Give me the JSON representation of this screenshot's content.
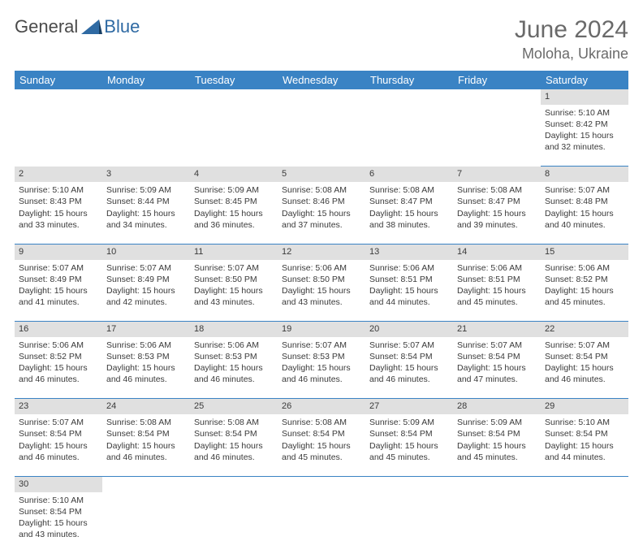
{
  "logo": {
    "text1": "General",
    "text2": "Blue"
  },
  "title": "June 2024",
  "location": "Moloha, Ukraine",
  "colors": {
    "header_bg": "#3a83c4",
    "header_text": "#ffffff",
    "date_row_bg": "#e0e0e0",
    "cell_border": "#3a83c4",
    "text": "#3a3a3a",
    "title_text": "#6a6a6a"
  },
  "day_headers": [
    "Sunday",
    "Monday",
    "Tuesday",
    "Wednesday",
    "Thursday",
    "Friday",
    "Saturday"
  ],
  "weeks": [
    {
      "dates": [
        "",
        "",
        "",
        "",
        "",
        "",
        "1"
      ],
      "cells": [
        null,
        null,
        null,
        null,
        null,
        null,
        {
          "sunrise": "Sunrise: 5:10 AM",
          "sunset": "Sunset: 8:42 PM",
          "daylight": "Daylight: 15 hours and 32 minutes."
        }
      ]
    },
    {
      "dates": [
        "2",
        "3",
        "4",
        "5",
        "6",
        "7",
        "8"
      ],
      "cells": [
        {
          "sunrise": "Sunrise: 5:10 AM",
          "sunset": "Sunset: 8:43 PM",
          "daylight": "Daylight: 15 hours and 33 minutes."
        },
        {
          "sunrise": "Sunrise: 5:09 AM",
          "sunset": "Sunset: 8:44 PM",
          "daylight": "Daylight: 15 hours and 34 minutes."
        },
        {
          "sunrise": "Sunrise: 5:09 AM",
          "sunset": "Sunset: 8:45 PM",
          "daylight": "Daylight: 15 hours and 36 minutes."
        },
        {
          "sunrise": "Sunrise: 5:08 AM",
          "sunset": "Sunset: 8:46 PM",
          "daylight": "Daylight: 15 hours and 37 minutes."
        },
        {
          "sunrise": "Sunrise: 5:08 AM",
          "sunset": "Sunset: 8:47 PM",
          "daylight": "Daylight: 15 hours and 38 minutes."
        },
        {
          "sunrise": "Sunrise: 5:08 AM",
          "sunset": "Sunset: 8:47 PM",
          "daylight": "Daylight: 15 hours and 39 minutes."
        },
        {
          "sunrise": "Sunrise: 5:07 AM",
          "sunset": "Sunset: 8:48 PM",
          "daylight": "Daylight: 15 hours and 40 minutes."
        }
      ]
    },
    {
      "dates": [
        "9",
        "10",
        "11",
        "12",
        "13",
        "14",
        "15"
      ],
      "cells": [
        {
          "sunrise": "Sunrise: 5:07 AM",
          "sunset": "Sunset: 8:49 PM",
          "daylight": "Daylight: 15 hours and 41 minutes."
        },
        {
          "sunrise": "Sunrise: 5:07 AM",
          "sunset": "Sunset: 8:49 PM",
          "daylight": "Daylight: 15 hours and 42 minutes."
        },
        {
          "sunrise": "Sunrise: 5:07 AM",
          "sunset": "Sunset: 8:50 PM",
          "daylight": "Daylight: 15 hours and 43 minutes."
        },
        {
          "sunrise": "Sunrise: 5:06 AM",
          "sunset": "Sunset: 8:50 PM",
          "daylight": "Daylight: 15 hours and 43 minutes."
        },
        {
          "sunrise": "Sunrise: 5:06 AM",
          "sunset": "Sunset: 8:51 PM",
          "daylight": "Daylight: 15 hours and 44 minutes."
        },
        {
          "sunrise": "Sunrise: 5:06 AM",
          "sunset": "Sunset: 8:51 PM",
          "daylight": "Daylight: 15 hours and 45 minutes."
        },
        {
          "sunrise": "Sunrise: 5:06 AM",
          "sunset": "Sunset: 8:52 PM",
          "daylight": "Daylight: 15 hours and 45 minutes."
        }
      ]
    },
    {
      "dates": [
        "16",
        "17",
        "18",
        "19",
        "20",
        "21",
        "22"
      ],
      "cells": [
        {
          "sunrise": "Sunrise: 5:06 AM",
          "sunset": "Sunset: 8:52 PM",
          "daylight": "Daylight: 15 hours and 46 minutes."
        },
        {
          "sunrise": "Sunrise: 5:06 AM",
          "sunset": "Sunset: 8:53 PM",
          "daylight": "Daylight: 15 hours and 46 minutes."
        },
        {
          "sunrise": "Sunrise: 5:06 AM",
          "sunset": "Sunset: 8:53 PM",
          "daylight": "Daylight: 15 hours and 46 minutes."
        },
        {
          "sunrise": "Sunrise: 5:07 AM",
          "sunset": "Sunset: 8:53 PM",
          "daylight": "Daylight: 15 hours and 46 minutes."
        },
        {
          "sunrise": "Sunrise: 5:07 AM",
          "sunset": "Sunset: 8:54 PM",
          "daylight": "Daylight: 15 hours and 46 minutes."
        },
        {
          "sunrise": "Sunrise: 5:07 AM",
          "sunset": "Sunset: 8:54 PM",
          "daylight": "Daylight: 15 hours and 47 minutes."
        },
        {
          "sunrise": "Sunrise: 5:07 AM",
          "sunset": "Sunset: 8:54 PM",
          "daylight": "Daylight: 15 hours and 46 minutes."
        }
      ]
    },
    {
      "dates": [
        "23",
        "24",
        "25",
        "26",
        "27",
        "28",
        "29"
      ],
      "cells": [
        {
          "sunrise": "Sunrise: 5:07 AM",
          "sunset": "Sunset: 8:54 PM",
          "daylight": "Daylight: 15 hours and 46 minutes."
        },
        {
          "sunrise": "Sunrise: 5:08 AM",
          "sunset": "Sunset: 8:54 PM",
          "daylight": "Daylight: 15 hours and 46 minutes."
        },
        {
          "sunrise": "Sunrise: 5:08 AM",
          "sunset": "Sunset: 8:54 PM",
          "daylight": "Daylight: 15 hours and 46 minutes."
        },
        {
          "sunrise": "Sunrise: 5:08 AM",
          "sunset": "Sunset: 8:54 PM",
          "daylight": "Daylight: 15 hours and 45 minutes."
        },
        {
          "sunrise": "Sunrise: 5:09 AM",
          "sunset": "Sunset: 8:54 PM",
          "daylight": "Daylight: 15 hours and 45 minutes."
        },
        {
          "sunrise": "Sunrise: 5:09 AM",
          "sunset": "Sunset: 8:54 PM",
          "daylight": "Daylight: 15 hours and 45 minutes."
        },
        {
          "sunrise": "Sunrise: 5:10 AM",
          "sunset": "Sunset: 8:54 PM",
          "daylight": "Daylight: 15 hours and 44 minutes."
        }
      ]
    },
    {
      "dates": [
        "30",
        "",
        "",
        "",
        "",
        "",
        ""
      ],
      "cells": [
        {
          "sunrise": "Sunrise: 5:10 AM",
          "sunset": "Sunset: 8:54 PM",
          "daylight": "Daylight: 15 hours and 43 minutes."
        },
        null,
        null,
        null,
        null,
        null,
        null
      ]
    }
  ]
}
